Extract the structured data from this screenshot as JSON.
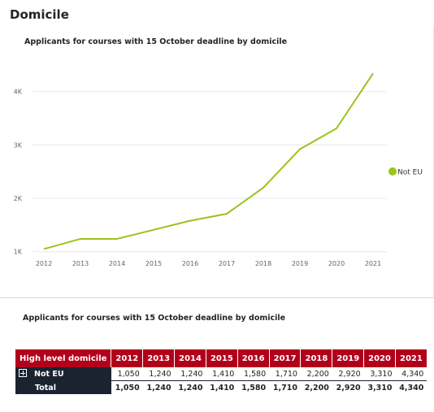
{
  "page": {
    "title": "Domicile"
  },
  "line_chart": {
    "title": "Applicants for courses with 15 October deadline by domicile"
  },
  "table": {
    "title": "Applicants for courses with 15 October deadline  by domicile",
    "row_header_label": "High level domicile",
    "years": [
      "2012",
      "2013",
      "2014",
      "2015",
      "2016",
      "2017",
      "2018",
      "2019",
      "2020",
      "2021"
    ],
    "rows": [
      {
        "label": "Not EU",
        "values": [
          "1,050",
          "1,240",
          "1,240",
          "1,410",
          "1,580",
          "1,710",
          "2,200",
          "2,920",
          "3,310",
          "4,340"
        ]
      }
    ],
    "total": {
      "label": "Total",
      "values": [
        "1,050",
        "1,240",
        "1,240",
        "1,410",
        "1,580",
        "1,710",
        "2,200",
        "2,920",
        "3,310",
        "4,340"
      ]
    },
    "colors": {
      "header_bg": "#b2001b",
      "row_header_bg": "#1b2330"
    }
  },
  "chart_data": {
    "type": "line",
    "title": "Applicants for courses with 15 October deadline by domicile",
    "x": [
      "2012",
      "2013",
      "2014",
      "2015",
      "2016",
      "2017",
      "2018",
      "2019",
      "2020",
      "2021"
    ],
    "series": [
      {
        "name": "Not EU",
        "color": "#9bc31c",
        "values": [
          1050,
          1240,
          1240,
          1410,
          1580,
          1710,
          2200,
          2920,
          3310,
          4340
        ]
      }
    ],
    "yticks": [
      1000,
      2000,
      3000,
      4000
    ],
    "ytick_labels": [
      "1K",
      "2K",
      "3K",
      "4K"
    ],
    "ylim": [
      950,
      4650
    ],
    "grid": true,
    "legend_position": "right"
  }
}
